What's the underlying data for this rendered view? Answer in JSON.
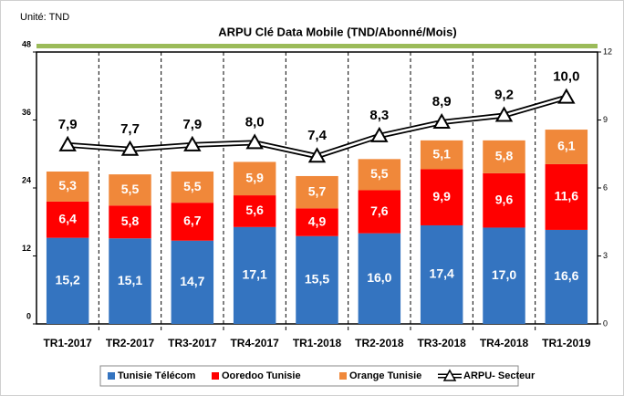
{
  "chart_data": {
    "type": "bar",
    "stacked": true,
    "subtitle": "Unité: TND",
    "title": "ARPU Clé Data Mobile (TND/Abonné/Mois)",
    "categories": [
      "TR1-2017",
      "TR2-2017",
      "TR3-2017",
      "TR4-2017",
      "TR1-2018",
      "TR2-2018",
      "TR3-2018",
      "TR4-2018",
      "TR1-2019"
    ],
    "series": [
      {
        "name": "Tunisie Télécom",
        "color": "#3474c0",
        "values": [
          15.2,
          15.1,
          14.7,
          17.1,
          15.5,
          16.0,
          17.4,
          17.0,
          16.6
        ],
        "value_labels": [
          "15,2",
          "15,1",
          "14,7",
          "17,1",
          "15,5",
          "16,0",
          "17,4",
          "17,0",
          "16,6"
        ]
      },
      {
        "name": "Ooredoo Tunisie",
        "color": "#ff0000",
        "values": [
          6.4,
          5.8,
          6.7,
          5.6,
          4.9,
          7.6,
          9.9,
          9.6,
          11.6
        ],
        "value_labels": [
          "6,4",
          "5,8",
          "6,7",
          "5,6",
          "4,9",
          "7,6",
          "9,9",
          "9,6",
          "11,6"
        ]
      },
      {
        "name": "Orange Tunisie",
        "color": "#f0883a",
        "values": [
          5.3,
          5.5,
          5.5,
          5.9,
          5.7,
          5.5,
          5.1,
          5.8,
          6.1
        ],
        "value_labels": [
          "5,3",
          "5,5",
          "5,5",
          "5,9",
          "5,7",
          "5,5",
          "5,1",
          "5,8",
          "6,1"
        ]
      },
      {
        "name": "ARPU- Secteur",
        "type": "line",
        "axis": "y2",
        "color": "#000000",
        "values": [
          7.9,
          7.7,
          7.9,
          8.0,
          7.4,
          8.3,
          8.9,
          9.2,
          10.0
        ],
        "value_labels": [
          "7,9",
          "7,7",
          "7,9",
          "8,0",
          "7,4",
          "8,3",
          "8,9",
          "9,2",
          "10,0"
        ]
      }
    ],
    "ylim": [
      0,
      48
    ],
    "yticks": [
      0,
      12,
      24,
      36,
      48
    ],
    "y2lim": [
      0,
      12
    ],
    "y2ticks": [
      0,
      3,
      6,
      9,
      12
    ],
    "legend": "bottom"
  }
}
